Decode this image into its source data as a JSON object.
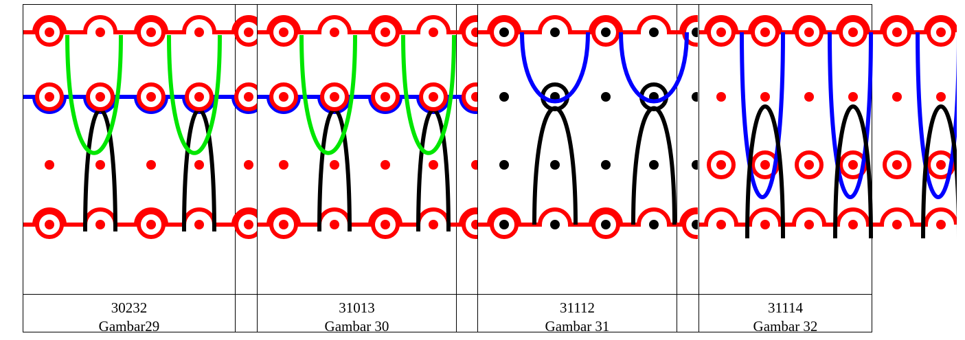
{
  "colors": {
    "red": "#ff0000",
    "black": "#000000",
    "green": "#00e600",
    "blue": "#0000ff",
    "border": "#000000"
  },
  "figures": [
    {
      "code": "30232",
      "label": "Gambar29",
      "variant": "green-black"
    },
    {
      "code": "31013",
      "label": "Gambar 30",
      "variant": "green-black"
    },
    {
      "code": "31112",
      "label": "Gambar 31",
      "variant": "blue-black"
    },
    {
      "code": "31114",
      "label": "Gambar 32",
      "variant": "blue-black-red"
    }
  ]
}
